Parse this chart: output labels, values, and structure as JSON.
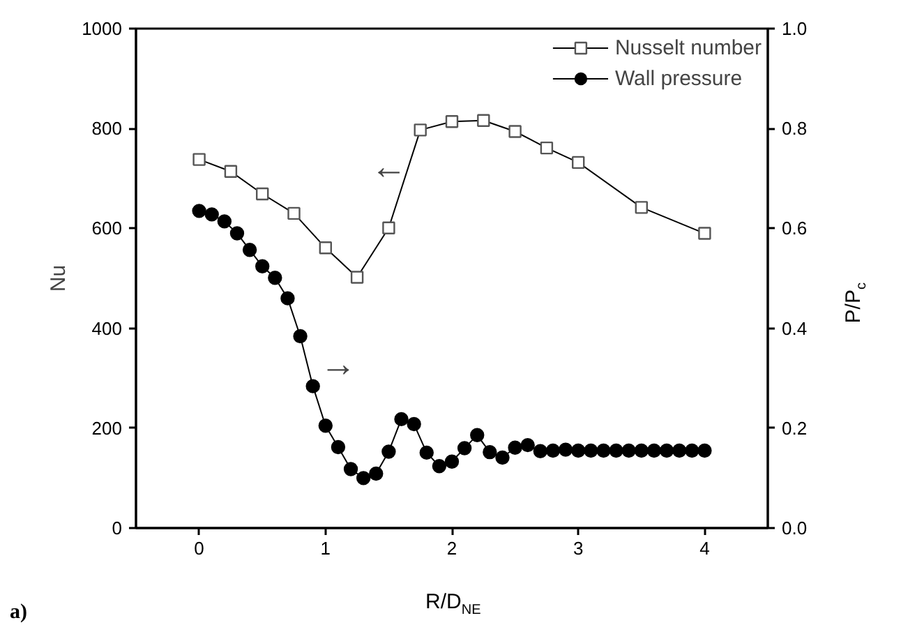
{
  "chart_data": {
    "type": "line",
    "xlabel": "R/D$_{NE}$",
    "ylabel": "Nu",
    "y2label": "P/P$_{c}$",
    "xlim": [
      -0.5,
      4.5
    ],
    "xticks": [
      0,
      1,
      2,
      3,
      4
    ],
    "ylim": [
      0,
      1000
    ],
    "yticks": [
      0,
      200,
      400,
      600,
      800,
      1000
    ],
    "y2lim": [
      0,
      1.0
    ],
    "y2ticks": [
      {
        "value": 0,
        "label": "0.0"
      },
      {
        "value": 0.2,
        "label": "0.2"
      },
      {
        "value": 0.4,
        "label": "0.4"
      },
      {
        "value": 0.6,
        "label": "0.6"
      },
      {
        "value": 0.8,
        "label": "0.8"
      },
      {
        "value": 1.0,
        "label": "1.0"
      }
    ],
    "grid": false,
    "legend": "top right",
    "line_style": "solid",
    "series": [
      {
        "name": "Nusselt number",
        "color": "#000000",
        "marker": "square",
        "x": [
          0,
          0.25,
          0.5,
          0.75,
          1,
          1.25,
          1.5,
          1.75,
          2,
          2.25,
          2.5,
          2.75,
          3,
          3.5,
          4
        ],
        "values": [
          738,
          714,
          669,
          630,
          561,
          502,
          601,
          797,
          814,
          816,
          794,
          761,
          732,
          642,
          590
        ]
      },
      {
        "name": "Wall pressure",
        "color": "#000000",
        "marker": "circle",
        "axis": "y2",
        "x": [
          0,
          0.1,
          0.2,
          0.3,
          0.4,
          0.5,
          0.6,
          0.7,
          0.8,
          0.9,
          1.0,
          1.1,
          1.2,
          1.3,
          1.4,
          1.5,
          1.6,
          1.7,
          1.8,
          1.9,
          2.0,
          2.1,
          2.2,
          2.3,
          2.4,
          2.5,
          2.6,
          2.7,
          2.8,
          2.9,
          3.0,
          3.1,
          3.2,
          3.3,
          3.4,
          3.5,
          3.6,
          3.7,
          3.8,
          3.9,
          4.0
        ],
        "values": [
          0.635,
          0.628,
          0.614,
          0.59,
          0.557,
          0.524,
          0.501,
          0.46,
          0.384,
          0.284,
          0.205,
          0.162,
          0.118,
          0.1,
          0.109,
          0.153,
          0.218,
          0.208,
          0.151,
          0.124,
          0.133,
          0.16,
          0.186,
          0.152,
          0.141,
          0.161,
          0.166,
          0.154,
          0.155,
          0.157,
          0.155,
          0.155,
          0.155,
          0.155,
          0.155,
          0.155,
          0.155,
          0.155,
          0.155,
          0.155,
          0.155
        ]
      }
    ],
    "annotations": [
      "←",
      "→",
      "a)"
    ]
  }
}
